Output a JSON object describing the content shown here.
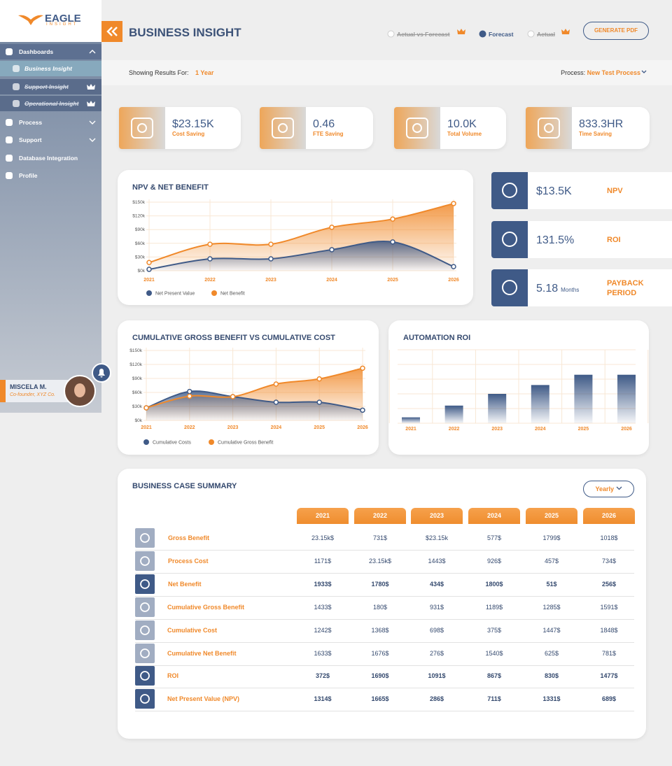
{
  "sidebar": {
    "logo": {
      "name": "EAGLE",
      "tagline": "INSIGHT"
    },
    "nav": [
      {
        "label": "Dashboards"
      },
      {
        "label": "Business Insight"
      },
      {
        "label": "Support Insight"
      },
      {
        "label": "Operational Insight"
      },
      {
        "label": "Process"
      },
      {
        "label": "Support"
      },
      {
        "label": "Database Integration"
      },
      {
        "label": "Profile"
      }
    ],
    "user": {
      "name": "MISCELA M.",
      "role": "Co-founder, XYZ Co."
    }
  },
  "header": {
    "title": "BUSINESS INSIGHT",
    "views": [
      "Actual vs Forecast",
      "Forecast",
      "Actual"
    ],
    "button": "GENERATE PDF"
  },
  "filters": {
    "results_label": "Showing Results For:",
    "results_value": "1 Year",
    "process_label": "Process:",
    "process_value": "New Test Process"
  },
  "kpis": [
    {
      "value": "$23.15K",
      "label": "Cost Saving"
    },
    {
      "value": "0.46",
      "label": "FTE Saving"
    },
    {
      "value": "10.0K",
      "label": "Total Volume"
    },
    {
      "value": "833.3HR",
      "label": "Time Saving"
    }
  ],
  "metrics": [
    {
      "value": "$13.5K",
      "label": "NPV"
    },
    {
      "value": "131.5%",
      "label": "ROI"
    },
    {
      "value": "5.18",
      "unit": "Months",
      "label": "PAYBACK PERIOD"
    }
  ],
  "chart_data": [
    {
      "type": "area",
      "title": "NPV & NET BENEFIT",
      "categories": [
        "2021",
        "2022",
        "2023",
        "2024",
        "2025",
        "2026"
      ],
      "series": [
        {
          "name": "Net Present Value",
          "color": "#3f5a87",
          "values": [
            3000,
            26000,
            26000,
            46000,
            63000,
            9000
          ]
        },
        {
          "name": "Net Benefit",
          "color": "#f0892a",
          "values": [
            18000,
            58000,
            58000,
            95000,
            113000,
            147000
          ]
        }
      ],
      "ylim": [
        0,
        150000
      ],
      "yticks": [
        {
          "value": 0,
          "label": "$0k"
        },
        {
          "value": 30000,
          "label": "$30k"
        },
        {
          "value": 60000,
          "label": "$60k"
        },
        {
          "value": 90000,
          "label": "$90k"
        },
        {
          "value": 120000,
          "label": "$120k"
        },
        {
          "value": 150000,
          "label": "$150k"
        }
      ],
      "grid": true,
      "legend": "bottom"
    },
    {
      "type": "area",
      "title": "CUMULATIVE GROSS BENEFIT VS CUMULATIVE COST",
      "categories": [
        "2021",
        "2022",
        "2023",
        "2024",
        "2025",
        "2026"
      ],
      "series": [
        {
          "name": "Cumulative Costs",
          "color": "#3f5a87",
          "values": [
            27000,
            62000,
            51000,
            39000,
            39000,
            22000
          ]
        },
        {
          "name": "Cumulative Gross Benefit",
          "color": "#f0892a",
          "values": [
            27000,
            52000,
            51000,
            78000,
            89000,
            112000
          ]
        }
      ],
      "ylim": [
        0,
        150000
      ],
      "yticks": [
        {
          "value": 0,
          "label": "$0k"
        },
        {
          "value": 30000,
          "label": "$30k"
        },
        {
          "value": 60000,
          "label": "$60k"
        },
        {
          "value": 90000,
          "label": "$90k"
        },
        {
          "value": 120000,
          "label": "$120k"
        },
        {
          "value": 150000,
          "label": "$150k"
        }
      ],
      "grid": true,
      "legend": "bottom"
    },
    {
      "type": "bar",
      "title": "AUTOMATION ROI",
      "categories": [
        "2021",
        "2022",
        "2023",
        "2024",
        "2025",
        "2026"
      ],
      "values": [
        0.4,
        1.2,
        2.0,
        2.6,
        3.3,
        3.3
      ],
      "color": "#3f5a87",
      "ylim": [
        0,
        5
      ],
      "grid": true
    }
  ],
  "summary": {
    "title": "BUSINESS CASE SUMMARY",
    "period": "Yearly",
    "columns": [
      "2021",
      "2022",
      "2023",
      "2024",
      "2025",
      "2026"
    ],
    "rows": [
      {
        "label": "Gross Benefit",
        "values": [
          "23.15k$",
          "731$",
          "$23.15k",
          "577$",
          "1799$",
          "1018$"
        ]
      },
      {
        "label": "Process Cost",
        "values": [
          "1171$",
          "23.15k$",
          "1443$",
          "926$",
          "457$",
          "734$"
        ]
      },
      {
        "label": "Net Benefit",
        "values": [
          "1933$",
          "1780$",
          "434$",
          "1800$",
          "51$",
          "256$"
        ]
      },
      {
        "label": "Cumulative Gross Benefit",
        "values": [
          "1433$",
          "180$",
          "931$",
          "1189$",
          "1285$",
          "1591$"
        ]
      },
      {
        "label": "Cumulative Cost",
        "values": [
          "1242$",
          "1368$",
          "698$",
          "375$",
          "1447$",
          "1848$"
        ]
      },
      {
        "label": "Cumulative Net Benefit",
        "values": [
          "1633$",
          "1676$",
          "276$",
          "1540$",
          "625$",
          "781$"
        ]
      },
      {
        "label": "ROI",
        "values": [
          "372$",
          "1690$",
          "1091$",
          "867$",
          "830$",
          "1477$"
        ]
      },
      {
        "label": "Net Present Value (NPV)",
        "values": [
          "1314$",
          "1665$",
          "286$",
          "711$",
          "1331$",
          "689$"
        ]
      }
    ]
  }
}
